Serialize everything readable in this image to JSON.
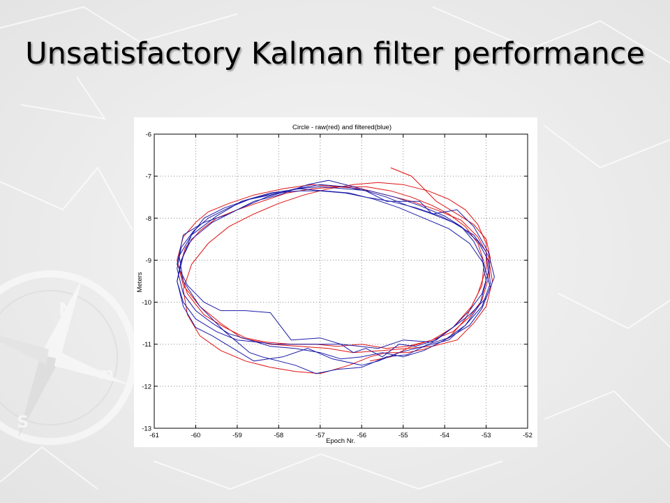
{
  "slide": {
    "title": "Unsatisfactory Kalman filter performance"
  },
  "colors": {
    "raw": "#e01010",
    "filtered": "#1a1aa8",
    "grid": "#8a8a8a",
    "axes": "#000000"
  },
  "chart_data": {
    "type": "line",
    "title": "Circle - raw(red) and filtered(blue)",
    "xlabel": "Epoch Nr.",
    "ylabel": "Meters",
    "xlim": [
      -61,
      -52
    ],
    "ylim": [
      -13,
      -6
    ],
    "xticks": [
      -61,
      -60,
      -59,
      -58,
      -57,
      -56,
      -55,
      -54,
      -53,
      -52
    ],
    "yticks": [
      -6,
      -7,
      -8,
      -9,
      -10,
      -11,
      -12,
      -13
    ],
    "grid": true,
    "legend": "none",
    "series": [
      {
        "color": "#e01010",
        "x": [
          -55.5,
          -56.2,
          -56.8,
          -57.5,
          -58.2,
          -58.9,
          -59.4,
          -59.9,
          -60.3,
          -60.45,
          -60.3,
          -60.0,
          -59.7,
          -59.2,
          -58.6,
          -57.9,
          -57.2,
          -56.6,
          -56.0,
          -55.4,
          -54.8,
          -54.2,
          -53.6,
          -53.2,
          -52.95,
          -52.85,
          -53.0,
          -53.3,
          -53.7,
          -54.3,
          -54.9,
          -55.5
        ],
        "y": [
          -11.15,
          -11.2,
          -11.1,
          -11.05,
          -11.0,
          -10.85,
          -10.5,
          -10.1,
          -9.6,
          -9.0,
          -8.45,
          -8.1,
          -7.85,
          -7.65,
          -7.45,
          -7.3,
          -7.2,
          -7.25,
          -7.3,
          -7.45,
          -7.6,
          -7.8,
          -8.05,
          -8.45,
          -8.9,
          -9.5,
          -10.1,
          -10.5,
          -10.9,
          -11.05,
          -11.1,
          -11.15
        ]
      },
      {
        "color": "#e01010",
        "x": [
          -56.0,
          -56.6,
          -57.1,
          -57.7,
          -58.3,
          -58.8,
          -59.3,
          -59.8,
          -60.2,
          -60.4,
          -60.25,
          -59.9,
          -59.5,
          -59.0,
          -58.4,
          -57.8,
          -57.2,
          -56.5,
          -55.9,
          -55.3,
          -54.8,
          -54.3,
          -53.9,
          -53.5,
          -53.2,
          -53.05,
          -53.1,
          -53.35,
          -53.8,
          -54.3,
          -54.9,
          -55.4,
          -56.0
        ],
        "y": [
          -11.0,
          -11.05,
          -11.0,
          -11.0,
          -10.95,
          -10.85,
          -10.6,
          -10.3,
          -9.8,
          -9.2,
          -8.7,
          -8.3,
          -8.0,
          -7.8,
          -7.6,
          -7.4,
          -7.3,
          -7.25,
          -7.25,
          -7.35,
          -7.5,
          -7.7,
          -7.9,
          -8.2,
          -8.6,
          -9.05,
          -9.6,
          -10.1,
          -10.6,
          -10.9,
          -11.05,
          -11.1,
          -11.0
        ]
      },
      {
        "color": "#e01010",
        "x": [
          -57.0,
          -57.6,
          -58.2,
          -58.8,
          -59.4,
          -59.9,
          -60.2,
          -60.3,
          -60.1,
          -59.7,
          -59.2,
          -58.6,
          -58.0,
          -57.4,
          -56.8,
          -56.2,
          -55.6,
          -55.0,
          -54.4,
          -53.9,
          -53.5,
          -53.2,
          -53.0,
          -53.0,
          -53.2,
          -53.5,
          -53.9,
          -54.4,
          -54.9,
          -55.4,
          -55.8,
          -56.3,
          -57.0
        ],
        "y": [
          -11.7,
          -11.65,
          -11.55,
          -11.4,
          -11.15,
          -10.8,
          -10.3,
          -9.7,
          -9.1,
          -8.6,
          -8.2,
          -7.9,
          -7.65,
          -7.45,
          -7.3,
          -7.2,
          -7.15,
          -7.2,
          -7.35,
          -7.55,
          -7.8,
          -8.15,
          -8.6,
          -9.2,
          -9.8,
          -10.4,
          -10.85,
          -11.1,
          -11.2,
          -11.2,
          -11.3,
          -11.5,
          -11.7
        ]
      },
      {
        "color": "#e01010",
        "x": [
          -55.8,
          -55.3,
          -54.8,
          -54.3,
          -53.8,
          -53.4,
          -53.1,
          -52.95,
          -52.9,
          -53.0,
          -53.3,
          -53.7,
          -54.2,
          -54.8,
          -55.3
        ],
        "y": [
          -11.4,
          -11.3,
          -11.05,
          -10.9,
          -10.7,
          -10.35,
          -9.95,
          -9.45,
          -8.95,
          -8.5,
          -8.15,
          -7.9,
          -7.6,
          -7.0,
          -6.8
        ]
      },
      {
        "color": "#1a1aa8",
        "x": [
          -56.0,
          -56.7,
          -57.3,
          -57.9,
          -58.6,
          -59.1,
          -59.6,
          -60.0,
          -60.3,
          -60.45,
          -60.3,
          -60.1,
          -59.8,
          -59.3,
          -58.7,
          -58.2,
          -57.6,
          -57.0,
          -56.4,
          -55.8,
          -55.2,
          -54.6,
          -54.0,
          -53.6,
          -53.3,
          -53.1,
          -53.0,
          -53.15,
          -53.5,
          -53.9,
          -54.5,
          -55.1,
          -55.6,
          -56.0
        ],
        "y": [
          -11.5,
          -11.35,
          -11.1,
          -11.3,
          -11.4,
          -11.1,
          -10.8,
          -10.6,
          -10.1,
          -9.5,
          -8.9,
          -8.4,
          -8.0,
          -7.75,
          -7.55,
          -7.45,
          -7.3,
          -7.25,
          -7.3,
          -7.35,
          -7.5,
          -7.7,
          -7.95,
          -8.2,
          -8.55,
          -8.95,
          -9.5,
          -10.05,
          -10.55,
          -10.9,
          -11.05,
          -11.2,
          -11.4,
          -11.5
        ]
      },
      {
        "color": "#1a1aa8",
        "x": [
          -58.1,
          -57.3,
          -56.5,
          -56.2,
          -55.9,
          -55.5,
          -55.1,
          -54.7,
          -54.2,
          -53.8,
          -53.4,
          -53.1,
          -52.95,
          -53.0,
          -53.3,
          -53.8,
          -54.3,
          -54.9,
          -55.4,
          -55.9,
          -56.4,
          -57.0,
          -57.6,
          -58.3,
          -59.0,
          -59.6,
          -60.1,
          -60.35,
          -60.45,
          -60.3,
          -60.0,
          -59.5,
          -59.0,
          -58.5,
          -58.1
        ],
        "y": [
          -11.0,
          -11.0,
          -11.0,
          -11.2,
          -11.1,
          -11.3,
          -11.0,
          -11.05,
          -10.9,
          -10.6,
          -10.2,
          -9.8,
          -9.3,
          -8.8,
          -8.4,
          -8.1,
          -7.9,
          -7.7,
          -7.5,
          -7.35,
          -7.25,
          -7.2,
          -7.3,
          -7.5,
          -7.8,
          -8.1,
          -8.5,
          -9.0,
          -9.5,
          -10.0,
          -10.4,
          -10.7,
          -10.9,
          -10.95,
          -11.0
        ]
      },
      {
        "color": "#1a1aa8",
        "x": [
          -59.4,
          -58.8,
          -58.2,
          -57.7,
          -57.0,
          -56.5,
          -55.6,
          -55.0,
          -54.3,
          -53.8,
          -53.4,
          -53.0,
          -52.8,
          -52.95,
          -53.3,
          -53.7,
          -54.3,
          -54.6,
          -55.4,
          -56.0,
          -56.8,
          -57.3,
          -58.0,
          -58.6,
          -59.2,
          -59.8,
          -60.3,
          -60.45,
          -60.2,
          -59.8,
          -59.4
        ],
        "y": [
          -10.2,
          -10.2,
          -10.25,
          -10.9,
          -10.85,
          -11.0,
          -11.1,
          -10.9,
          -10.95,
          -10.6,
          -10.3,
          -9.9,
          -9.4,
          -8.8,
          -8.2,
          -7.8,
          -7.9,
          -7.6,
          -7.6,
          -7.3,
          -7.1,
          -7.2,
          -7.45,
          -7.6,
          -7.9,
          -8.1,
          -8.4,
          -9.1,
          -9.6,
          -10.0,
          -10.2
        ]
      },
      {
        "color": "#1a1aa8",
        "x": [
          -58.7,
          -58.4,
          -57.6,
          -57.1,
          -56.6,
          -56.0,
          -55.4,
          -54.9,
          -54.4,
          -53.9,
          -53.4,
          -53.1,
          -52.9,
          -53.05,
          -53.4,
          -53.9,
          -54.5,
          -55.1,
          -55.7,
          -56.3,
          -56.9,
          -57.5,
          -58.2,
          -58.9,
          -59.5,
          -60.1,
          -60.4,
          -60.3,
          -59.9,
          -59.3,
          -58.7
        ],
        "y": [
          -11.2,
          -11.3,
          -11.5,
          -11.7,
          -11.6,
          -11.55,
          -11.3,
          -11.25,
          -11.0,
          -10.85,
          -10.55,
          -10.15,
          -9.65,
          -9.1,
          -8.6,
          -8.25,
          -8.0,
          -7.75,
          -7.55,
          -7.4,
          -7.35,
          -7.3,
          -7.4,
          -7.6,
          -7.95,
          -8.4,
          -8.9,
          -9.5,
          -10.1,
          -10.7,
          -11.2
        ]
      },
      {
        "color": "#1a1aa8",
        "x": [
          -55.0,
          -55.5,
          -56.0,
          -56.5,
          -57.0,
          -57.6,
          -58.2,
          -58.7,
          -59.2,
          -59.6,
          -60.0,
          -60.3,
          -60.45,
          -60.35,
          -60.05,
          -59.7,
          -59.2,
          -58.7,
          -58.1,
          -57.5,
          -57.0,
          -56.4,
          -55.9,
          -55.3,
          -54.7,
          -54.1,
          -53.6,
          -53.2,
          -52.95,
          -52.9,
          -53.1,
          -53.5,
          -54.0,
          -54.5,
          -55.0
        ],
        "y": [
          -11.3,
          -11.2,
          -11.3,
          -11.35,
          -11.2,
          -11.1,
          -11.05,
          -10.9,
          -10.75,
          -10.5,
          -10.2,
          -9.8,
          -9.2,
          -8.7,
          -8.3,
          -8.0,
          -7.75,
          -7.55,
          -7.4,
          -7.35,
          -7.35,
          -7.4,
          -7.5,
          -7.6,
          -7.75,
          -7.95,
          -8.2,
          -8.55,
          -9.0,
          -9.55,
          -10.1,
          -10.55,
          -10.9,
          -11.15,
          -11.3
        ]
      }
    ]
  }
}
